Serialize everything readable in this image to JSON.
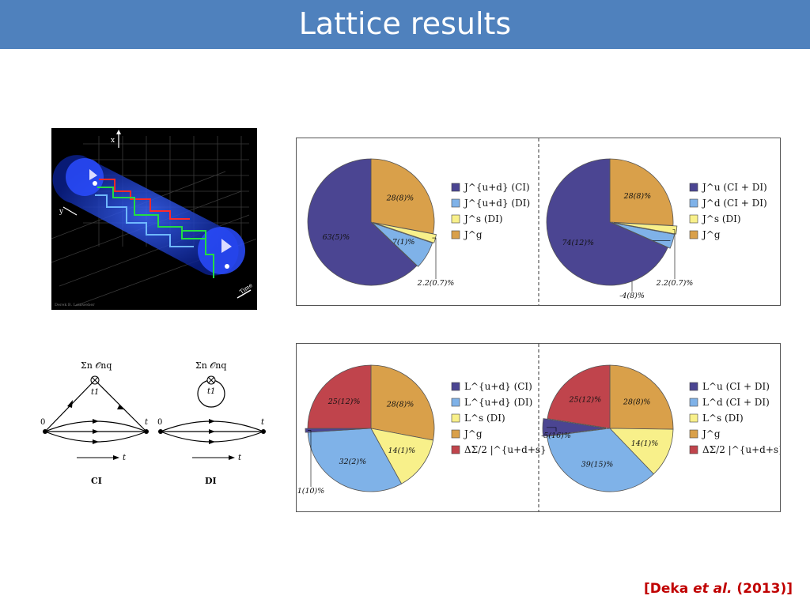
{
  "slide": {
    "title": "Lattice results",
    "citation_author": "Deka",
    "citation_etal": "et al.",
    "citation_year": "(2013)"
  },
  "image_credit": "Derek B. Leinweber",
  "lattice_axes": {
    "x": "x",
    "y": "y",
    "time": "Time"
  },
  "diagrams": {
    "operator": "Σn 𝒪nq",
    "vertex": "t1",
    "t0": "0",
    "tend": "t",
    "axis_t": "t",
    "ci_label": "CI",
    "di_label": "DI"
  },
  "chart_data": [
    {
      "type": "pie",
      "slices": [
        {
          "label": "63(5)%",
          "value": 63,
          "color": "#4b4592",
          "legend": "J^{u+d} (CI)"
        },
        {
          "label": "7(1)%",
          "value": 7,
          "color": "#7fb2e8",
          "legend": "J^{u+d} (DI)"
        },
        {
          "label": "2.2(0.7)%",
          "value": 2.2,
          "color": "#f8f08a",
          "legend": "J^s (DI)"
        },
        {
          "label": "28(8)%",
          "value": 28,
          "color": "#d9a04a",
          "legend": "J^g"
        }
      ]
    },
    {
      "type": "pie",
      "slices": [
        {
          "label": "74(12)%",
          "value": 74,
          "color": "#4b4592",
          "legend": "J^u (CI + DI)"
        },
        {
          "label": "-4(8)%",
          "value": 4,
          "color": "#7fb2e8",
          "legend": "J^d (CI + DI)"
        },
        {
          "label": "2.2(0.7)%",
          "value": 2.2,
          "color": "#f8f08a",
          "legend": "J^s (DI)"
        },
        {
          "label": "28(8)%",
          "value": 28,
          "color": "#d9a04a",
          "legend": "J^g"
        }
      ]
    },
    {
      "type": "pie",
      "slices": [
        {
          "label": "1(10)%",
          "value": 1,
          "color": "#4b4592",
          "legend": "L^{u+d} (CI)"
        },
        {
          "label": "32(2)%",
          "value": 32,
          "color": "#7fb2e8",
          "legend": "L^{u+d} (DI)"
        },
        {
          "label": "14(1)%",
          "value": 14,
          "color": "#f8f08a",
          "legend": "L^s (DI)"
        },
        {
          "label": "28(8)%",
          "value": 28,
          "color": "#d9a04a",
          "legend": "J^g"
        },
        {
          "label": "25(12)%",
          "value": 25,
          "color": "#c0444c",
          "legend": "ΔΣ/2 |^{u+d+s}"
        }
      ]
    },
    {
      "type": "pie",
      "slices": [
        {
          "label": "-5(16)%",
          "value": 5,
          "color": "#4b4592",
          "legend": "L^u (CI + DI)"
        },
        {
          "label": "39(15)%",
          "value": 39,
          "color": "#7fb2e8",
          "legend": "L^d (CI + DI)"
        },
        {
          "label": "14(1)%",
          "value": 14,
          "color": "#f8f08a",
          "legend": "L^s (DI)"
        },
        {
          "label": "28(8)%",
          "value": 28,
          "color": "#d9a04a",
          "legend": "J^g"
        },
        {
          "label": "25(12)%",
          "value": 25,
          "color": "#c0444c",
          "legend": "ΔΣ/2 |^{u+d+s}"
        }
      ]
    }
  ]
}
